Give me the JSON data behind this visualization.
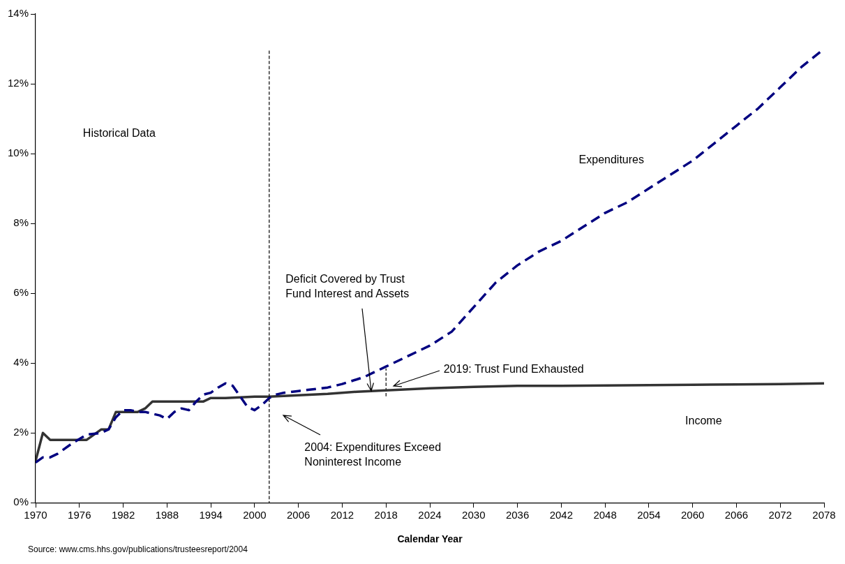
{
  "chart_data": {
    "type": "line",
    "xlabel": "Calendar Year",
    "xlim": [
      1970,
      2078
    ],
    "xticks": [
      1970,
      1976,
      1982,
      1988,
      1994,
      2000,
      2006,
      2012,
      2018,
      2024,
      2030,
      2036,
      2042,
      2048,
      2054,
      2060,
      2066,
      2072,
      2078
    ],
    "ylim": [
      0,
      14
    ],
    "yticks": [
      {
        "value": 0,
        "label": "0%"
      },
      {
        "value": 2,
        "label": "2%"
      },
      {
        "value": 4,
        "label": "4%"
      },
      {
        "value": 6,
        "label": "6%"
      },
      {
        "value": 8,
        "label": "8%"
      },
      {
        "value": 10,
        "label": "10%"
      },
      {
        "value": 12,
        "label": "12%"
      },
      {
        "value": 14,
        "label": "14%"
      }
    ],
    "grid": false,
    "legend": false,
    "marker": "none",
    "series": [
      {
        "name": "Expenditures",
        "color": "#000080",
        "line_style": "dashed",
        "x": [
          1970,
          1971,
          1972,
          1973,
          1975,
          1977,
          1979,
          1980,
          1981,
          1982,
          1983,
          1984,
          1985,
          1986,
          1987,
          1988,
          1989,
          1990,
          1991,
          1992,
          1993,
          1994,
          1995,
          1996,
          1997,
          1998,
          1999,
          2000,
          2001,
          2002,
          2003,
          2004,
          2006,
          2010,
          2012,
          2015,
          2018,
          2021,
          2024,
          2027,
          2030,
          2033,
          2036,
          2039,
          2042,
          2045,
          2048,
          2051,
          2054,
          2057,
          2060,
          2063,
          2066,
          2069,
          2072,
          2075,
          2078
        ],
        "values": [
          1.15,
          1.3,
          1.3,
          1.4,
          1.7,
          1.95,
          2.0,
          2.1,
          2.45,
          2.65,
          2.65,
          2.6,
          2.6,
          2.55,
          2.5,
          2.4,
          2.6,
          2.7,
          2.65,
          2.9,
          3.1,
          3.15,
          3.3,
          3.42,
          3.35,
          3.05,
          2.75,
          2.65,
          2.8,
          3.0,
          3.1,
          3.15,
          3.2,
          3.3,
          3.4,
          3.6,
          3.9,
          4.2,
          4.5,
          4.9,
          5.6,
          6.3,
          6.8,
          7.2,
          7.5,
          7.9,
          8.3,
          8.6,
          9.0,
          9.4,
          9.8,
          10.3,
          10.8,
          11.3,
          11.9,
          12.5,
          13.0
        ]
      },
      {
        "name": "Income",
        "color": "#333333",
        "line_style": "solid",
        "x": [
          1970,
          1971,
          1972,
          1977,
          1979,
          1980,
          1981,
          1984,
          1985,
          1986,
          1993,
          1994,
          1996,
          1998,
          2000,
          2002,
          2006,
          2010,
          2014,
          2018,
          2024,
          2030,
          2036,
          2042,
          2048,
          2054,
          2060,
          2066,
          2072,
          2078
        ],
        "values": [
          1.2,
          2.0,
          1.8,
          1.8,
          2.1,
          2.1,
          2.6,
          2.6,
          2.7,
          2.9,
          2.9,
          3.0,
          3.0,
          3.02,
          3.04,
          3.04,
          3.08,
          3.12,
          3.18,
          3.22,
          3.28,
          3.32,
          3.35,
          3.35,
          3.36,
          3.37,
          3.38,
          3.39,
          3.4,
          3.42
        ]
      },
      {
        "type": "line",
        "color": "#000000",
        "line_style": "dashed",
        "x": [
          2018,
          2018
        ],
        "values": [
          3.05,
          3.85
        ]
      }
    ],
    "ref_lines": [
      {
        "axis": "x",
        "value": 2002,
        "line_style": "dashed",
        "color": "#000000"
      }
    ],
    "annotations": [
      "Historical Data",
      {
        "text": "Deficit Covered by Trust Fund Interest and Assets",
        "x": 2016,
        "y": 3.2
      },
      {
        "text": "2019: Trust Fund Exhausted",
        "x": 2019,
        "y": 3.35
      },
      "2004: Expenditures Exceed Noninterest Income",
      "Source: www.cms.hhs.gov/publications/trusteesreport/2004"
    ]
  }
}
